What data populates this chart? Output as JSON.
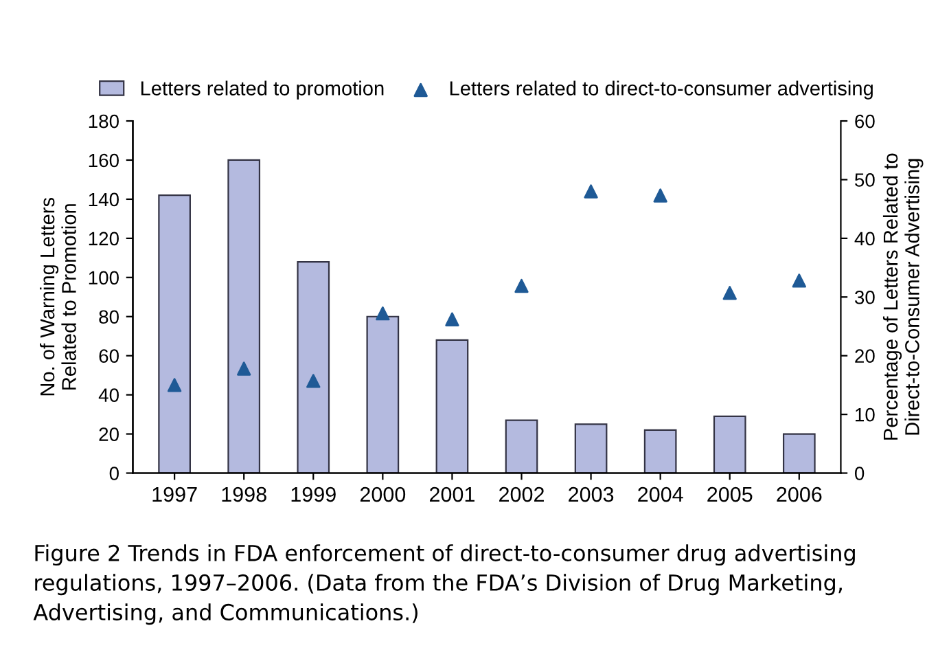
{
  "chart_data": {
    "type": "bar",
    "ylabel": "No. of Warning Letters\nRelated to Promotion",
    "y2label": "Percentage of Letters Related to\nDirect-to-Consumer Advertising",
    "categories": [
      "1997",
      "1998",
      "1999",
      "2000",
      "2001",
      "2002",
      "2003",
      "2004",
      "2005",
      "2006"
    ],
    "series": [
      {
        "name": "Letters related to promotion",
        "color": "#b4badf",
        "values": [
          142,
          160,
          108,
          80,
          68,
          27,
          25,
          22,
          29,
          20
        ]
      },
      {
        "name": "Letters related to direct-to-consumer advertising",
        "type": "scatter",
        "axis": "y2",
        "marker": "triangle",
        "color": "#1f5a96",
        "values": [
          15,
          17.8,
          15.7,
          27.2,
          26.2,
          31.9,
          48,
          47.3,
          30.7,
          32.8
        ]
      }
    ],
    "ylim": [
      0,
      180
    ],
    "yticks": [
      0,
      20,
      40,
      60,
      80,
      100,
      120,
      140,
      160,
      180
    ],
    "y2lim": [
      0,
      60
    ],
    "y2ticks": [
      0,
      10,
      20,
      30,
      40,
      50,
      60
    ],
    "grid": false,
    "legend": "top",
    "annotations": [
      "Figure 2 Trends in FDA enforcement of direct-to-consumer drug advertising regulations, 1997–2006. (Data from the FDA’s Division of Drug Marketing, Advertising, and Communications.)"
    ]
  }
}
